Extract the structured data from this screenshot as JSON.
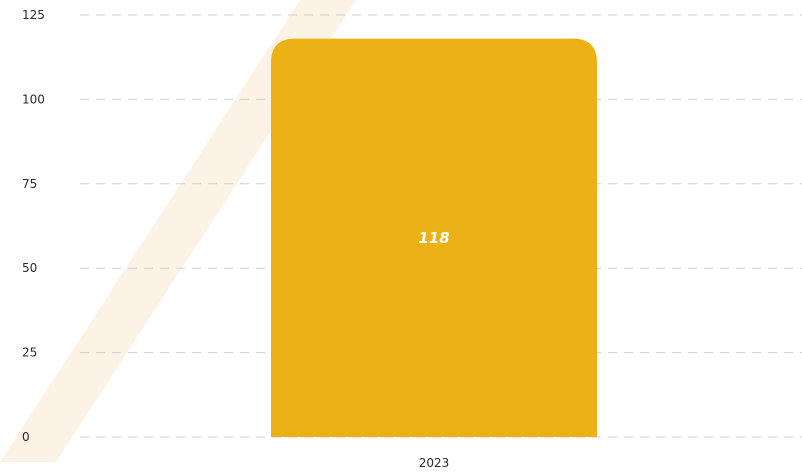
{
  "chart_data": {
    "type": "bar",
    "categories": [
      "2023"
    ],
    "values": [
      118
    ],
    "data_labels": [
      "118"
    ],
    "title": "",
    "xlabel": "",
    "ylabel": "",
    "ylim": [
      0,
      125
    ],
    "yticks": [
      0,
      25,
      50,
      75,
      100,
      125
    ],
    "ytick_labels": [
      "0",
      "25",
      "50",
      "75",
      "100",
      "125"
    ],
    "grid": true,
    "grid_style": "dashed",
    "legend": "none",
    "colors": {
      "bar": "#EDB118",
      "grid": "#cfcfcf",
      "text": "#2b2b2b",
      "data_label": "#ffffff",
      "watermark": "#FDF1E3"
    }
  }
}
